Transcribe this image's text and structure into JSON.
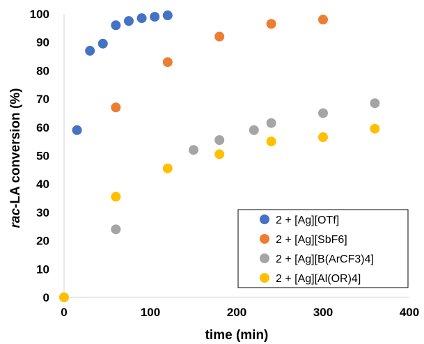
{
  "chart_data": {
    "type": "scatter",
    "title": "",
    "xlabel": "time (min)",
    "ylabel_italic": "rac",
    "ylabel_rest": "-LA conversion (%)",
    "xlim": [
      0,
      400
    ],
    "ylim": [
      0,
      100
    ],
    "x_ticks": [
      0,
      100,
      200,
      300,
      400
    ],
    "y_ticks": [
      0,
      10,
      20,
      30,
      40,
      50,
      60,
      70,
      80,
      90,
      100
    ],
    "grid": false,
    "legend_position": "bottom-right",
    "series": [
      {
        "name": "2 + [Ag][OTf]",
        "color": "#4472C4",
        "points": [
          [
            15,
            59
          ],
          [
            30,
            87
          ],
          [
            45,
            89.5
          ],
          [
            60,
            96
          ],
          [
            75,
            97.5
          ],
          [
            90,
            98.5
          ],
          [
            105,
            99
          ],
          [
            120,
            99.5
          ]
        ]
      },
      {
        "name": "2 + [Ag][SbF6]",
        "color": "#ED7D31",
        "points": [
          [
            60,
            67
          ],
          [
            120,
            83
          ],
          [
            180,
            92
          ],
          [
            240,
            96.5
          ],
          [
            300,
            98
          ]
        ]
      },
      {
        "name": "2 + [Ag][B(ArCF3)4]",
        "color": "#A5A5A5",
        "points": [
          [
            60,
            24
          ],
          [
            150,
            52
          ],
          [
            180,
            55.5
          ],
          [
            220,
            59
          ],
          [
            240,
            61.5
          ],
          [
            300,
            65
          ],
          [
            360,
            68.5
          ]
        ]
      },
      {
        "name": "2 + [Ag][Al(OR)4]",
        "color": "#FFC000",
        "points": [
          [
            0,
            0
          ],
          [
            60,
            35.5
          ],
          [
            120,
            45.5
          ],
          [
            180,
            50.5
          ],
          [
            240,
            55
          ],
          [
            300,
            56.5
          ],
          [
            360,
            59.5
          ]
        ]
      }
    ]
  }
}
